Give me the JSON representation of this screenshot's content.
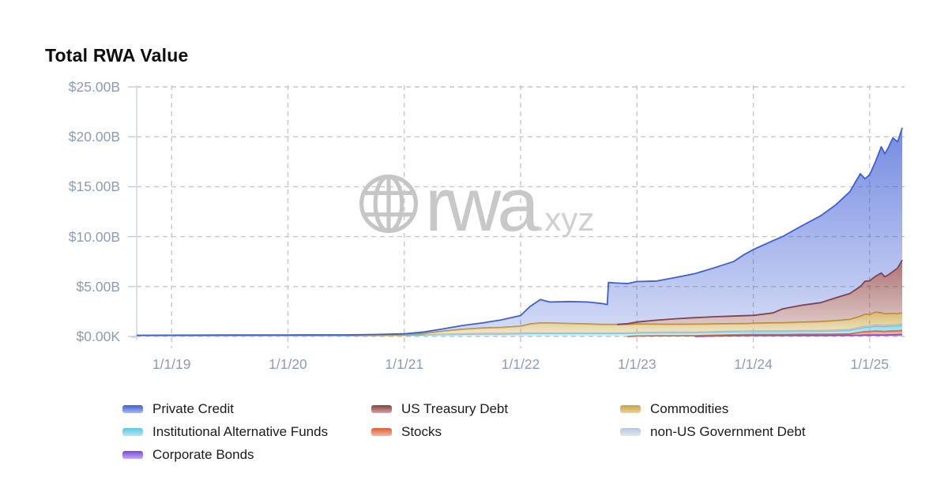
{
  "chart_data": {
    "type": "area",
    "stacked": true,
    "title": "Total RWA Value",
    "xlabel": "",
    "ylabel": "",
    "xlim": [
      2018.7,
      2025.3
    ],
    "ylim": [
      0,
      25
    ],
    "grid": "dashed",
    "legend_position": "bottom",
    "watermark": {
      "icon": "globe-icon",
      "text": "rwa",
      "suffix": ".xyz"
    },
    "y_ticks": [
      {
        "value": 0,
        "label": "$0.00K"
      },
      {
        "value": 5,
        "label": "$5.00B"
      },
      {
        "value": 10,
        "label": "$10.00B"
      },
      {
        "value": 15,
        "label": "$15.00B"
      },
      {
        "value": 20,
        "label": "$20.00B"
      },
      {
        "value": 25,
        "label": "$25.00B"
      }
    ],
    "x_ticks": [
      {
        "value": 2019,
        "label": "1/1/19"
      },
      {
        "value": 2020,
        "label": "1/1/20"
      },
      {
        "value": 2021,
        "label": "1/1/21"
      },
      {
        "value": 2022,
        "label": "1/1/22"
      },
      {
        "value": 2023,
        "label": "1/1/23"
      },
      {
        "value": 2024,
        "label": "1/1/24"
      },
      {
        "value": 2025,
        "label": "1/1/25"
      }
    ],
    "x_unit": "decimal_year",
    "value_unit": "billions_usd",
    "x": [
      2018.7,
      2019.0,
      2019.5,
      2020.0,
      2020.5,
      2020.75,
      2021.0,
      2021.17,
      2021.33,
      2021.5,
      2021.67,
      2021.83,
      2022.0,
      2022.08,
      2022.17,
      2022.25,
      2022.42,
      2022.58,
      2022.7,
      2022.745,
      2022.755,
      2022.83,
      2022.92,
      2023.0,
      2023.17,
      2023.33,
      2023.5,
      2023.67,
      2023.83,
      2023.92,
      2024.0,
      2024.17,
      2024.25,
      2024.42,
      2024.58,
      2024.71,
      2024.83,
      2024.92,
      2024.96,
      2025.0,
      2025.05,
      2025.1,
      2025.13,
      2025.16,
      2025.2,
      2025.24,
      2025.28
    ],
    "series": [
      {
        "name": "Corporate Bonds",
        "color": "#7a46e0",
        "values": [
          0,
          0,
          0,
          0,
          0,
          0,
          0,
          0,
          0,
          0,
          0,
          0,
          0,
          0,
          0,
          0,
          0,
          0,
          0,
          0,
          0,
          0,
          0,
          0,
          0,
          0,
          0,
          0.05,
          0.08,
          0.09,
          0.1,
          0.1,
          0.1,
          0.1,
          0.1,
          0.11,
          0.12,
          0.13,
          0.14,
          0.15,
          0.15,
          0.15,
          0.15,
          0.16,
          0.17,
          0.18,
          0.2
        ]
      },
      {
        "name": "Stocks",
        "color": "#dd5f33",
        "values": [
          0,
          0,
          0,
          0,
          0,
          0,
          0,
          0,
          0,
          0,
          0,
          0,
          0,
          0,
          0,
          0,
          0,
          0,
          0,
          0,
          0,
          0,
          0,
          0.05,
          0.06,
          0.07,
          0.08,
          0.08,
          0.09,
          0.09,
          0.1,
          0.1,
          0.1,
          0.12,
          0.12,
          0.13,
          0.15,
          0.3,
          0.35,
          0.35,
          0.4,
          0.38,
          0.35,
          0.38,
          0.4,
          0.38,
          0.42
        ]
      },
      {
        "name": "Institutional Alternative Funds",
        "color": "#5cc8e4",
        "values": [
          0.08,
          0.08,
          0.08,
          0.08,
          0.08,
          0.1,
          0.12,
          0.15,
          0.2,
          0.22,
          0.25,
          0.25,
          0.28,
          0.3,
          0.3,
          0.3,
          0.3,
          0.3,
          0.3,
          0.3,
          0.3,
          0.3,
          0.3,
          0.3,
          0.3,
          0.3,
          0.3,
          0.3,
          0.3,
          0.3,
          0.3,
          0.3,
          0.3,
          0.3,
          0.3,
          0.32,
          0.35,
          0.4,
          0.45,
          0.45,
          0.5,
          0.5,
          0.5,
          0.5,
          0.5,
          0.52,
          0.55
        ]
      },
      {
        "name": "non-US Government Debt",
        "color": "#b6c9de",
        "values": [
          0,
          0,
          0,
          0,
          0,
          0,
          0,
          0,
          0.02,
          0.05,
          0.05,
          0.05,
          0.05,
          0.05,
          0.05,
          0.05,
          0.05,
          0.05,
          0.05,
          0.05,
          0.05,
          0.05,
          0.05,
          0.05,
          0.05,
          0.05,
          0.05,
          0.05,
          0.05,
          0.05,
          0.06,
          0.06,
          0.06,
          0.06,
          0.07,
          0.07,
          0.08,
          0.08,
          0.08,
          0.08,
          0.08,
          0.08,
          0.08,
          0.08,
          0.08,
          0.08,
          0.08
        ]
      },
      {
        "name": "Commodities",
        "color": "#c9a23c",
        "values": [
          0,
          0,
          0,
          0,
          0,
          0.02,
          0.05,
          0.15,
          0.3,
          0.45,
          0.55,
          0.6,
          0.7,
          0.9,
          1.0,
          1.0,
          0.95,
          0.9,
          0.85,
          0.85,
          0.85,
          0.85,
          0.85,
          0.85,
          0.82,
          0.8,
          0.8,
          0.78,
          0.76,
          0.75,
          0.75,
          0.8,
          0.8,
          0.85,
          0.9,
          0.95,
          1.0,
          1.1,
          1.2,
          1.15,
          1.3,
          1.25,
          1.2,
          1.15,
          1.15,
          1.1,
          1.1
        ]
      },
      {
        "name": "US Treasury Debt",
        "color": "#8b3e3b",
        "values": [
          0,
          0,
          0,
          0,
          0,
          0,
          0,
          0,
          0,
          0,
          0,
          0,
          0,
          0,
          0,
          0,
          0,
          0,
          0,
          0,
          0,
          0,
          0.08,
          0.2,
          0.4,
          0.55,
          0.65,
          0.72,
          0.76,
          0.8,
          0.8,
          1.0,
          1.4,
          1.7,
          1.9,
          2.3,
          2.6,
          3.0,
          3.3,
          3.4,
          3.6,
          4.0,
          3.7,
          3.9,
          4.2,
          4.6,
          5.3
        ]
      },
      {
        "name": "Private Credit",
        "color": "#3f5fd4",
        "values": [
          0.04,
          0.05,
          0.06,
          0.07,
          0.08,
          0.08,
          0.1,
          0.15,
          0.23,
          0.38,
          0.5,
          0.75,
          1.07,
          1.75,
          2.35,
          2.1,
          2.2,
          2.2,
          2.1,
          2.0,
          4.2,
          4.15,
          4.02,
          4.05,
          3.92,
          4.13,
          4.42,
          4.92,
          5.46,
          6.12,
          6.59,
          7.24,
          7.24,
          7.97,
          8.71,
          9.32,
          10.2,
          11.29,
          10.28,
          10.62,
          11.47,
          12.64,
          12.32,
          12.73,
          13.4,
          12.64,
          13.25
        ]
      }
    ],
    "legend_columns": [
      [
        "Private Credit",
        "Institutional Alternative Funds",
        "Corporate Bonds"
      ],
      [
        "US Treasury Debt",
        "Stocks"
      ],
      [
        "Commodities",
        "non-US Government Debt"
      ]
    ],
    "style": {
      "background": "#ffffff",
      "grid_color": "#c7c7c7",
      "axis_border_color": "#ccd5e8",
      "tick_text_color": "#8d9bb3",
      "title_color": "#0d0d0d",
      "legend_text_color": "#1b1b1b",
      "watermark_color": "#c8c8c8"
    }
  }
}
